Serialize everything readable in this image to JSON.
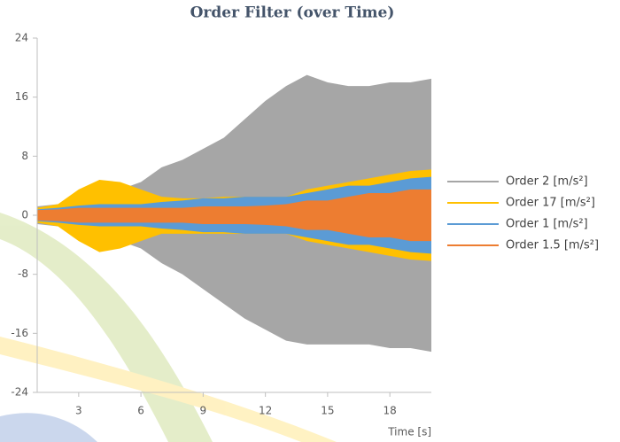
{
  "chart_data": {
    "type": "band",
    "title": "Order Filter (over Time)",
    "x_label": "Time [s]",
    "x": [
      1,
      2,
      3,
      4,
      5,
      6,
      7,
      8,
      9,
      10,
      11,
      12,
      13,
      14,
      15,
      16,
      17,
      18,
      19,
      20
    ],
    "series": [
      {
        "name": "Order 2 [m/s²]",
        "color": "#a6a6a6",
        "values": [
          1.2,
          1.5,
          2,
          3,
          3.5,
          4.5,
          6.5,
          7.5,
          9,
          10.5,
          13,
          15.5,
          17.5,
          19,
          18,
          17.5,
          17.5,
          18,
          18,
          18.5
        ],
        "lower": [
          -1.2,
          -1.5,
          -2,
          -3,
          -3.5,
          -4.5,
          -6.5,
          -8,
          -10,
          -12,
          -14,
          -15.5,
          -17,
          -17.5,
          -17.5,
          -17.5,
          -17.5,
          -18,
          -18,
          -18.5
        ]
      },
      {
        "name": "Order 17 [m/s²]",
        "color": "#ffc000",
        "values": [
          1,
          1.5,
          3.5,
          4.8,
          4.5,
          3.5,
          2.5,
          2.3,
          2.3,
          2.5,
          2.5,
          2.5,
          2.5,
          3.5,
          4,
          4.5,
          5,
          5.5,
          6,
          6.2
        ],
        "lower": [
          -1,
          -1.5,
          -3.5,
          -5,
          -4.5,
          -3.5,
          -2.5,
          -2.5,
          -2.5,
          -2.5,
          -2.5,
          -2.5,
          -2.5,
          -3.5,
          -4,
          -4.5,
          -5,
          -5.5,
          -6,
          -6.2
        ]
      },
      {
        "name": "Order 1 [m/s²]",
        "color": "#5b9bd5",
        "values": [
          0.8,
          1,
          1.3,
          1.5,
          1.5,
          1.5,
          1.8,
          2,
          2.3,
          2.3,
          2.5,
          2.5,
          2.5,
          3,
          3.5,
          4,
          4,
          4.5,
          5,
          5.2
        ],
        "lower": [
          -0.8,
          -1,
          -1.3,
          -1.5,
          -1.5,
          -1.5,
          -1.8,
          -2,
          -2.3,
          -2.3,
          -2.5,
          -2.5,
          -2.5,
          -3,
          -3.5,
          -4,
          -4,
          -4.5,
          -5,
          -5.2
        ]
      },
      {
        "name": "Order 1.5 [m/s²]",
        "color": "#ed7d31",
        "values": [
          0.7,
          0.8,
          1,
          1,
          1,
          1,
          1,
          1,
          1.2,
          1.2,
          1.2,
          1.3,
          1.5,
          2,
          2,
          2.5,
          3,
          3,
          3.5,
          3.5
        ],
        "lower": [
          -0.7,
          -0.8,
          -1,
          -1,
          -1,
          -1,
          -1,
          -1,
          -1.2,
          -1.2,
          -1.2,
          -1.3,
          -1.5,
          -2,
          -2,
          -2.5,
          -3,
          -3,
          -3.5,
          -3.5
        ]
      }
    ],
    "xlim": [
      1,
      20
    ],
    "xticks": [
      3,
      6,
      9,
      12,
      15,
      18
    ],
    "ylim": [
      -24,
      24
    ],
    "yticks": [
      -24,
      -16,
      -8,
      0,
      8,
      16,
      24
    ],
    "legend": "right"
  }
}
